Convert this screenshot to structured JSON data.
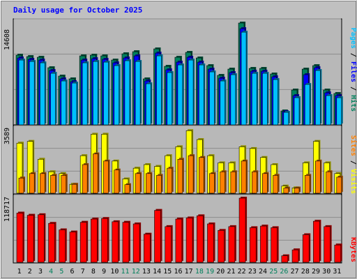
{
  "chart_data": [
    {
      "type": "bar",
      "title": "Daily usage for October 2025",
      "ymax_label": "14608",
      "ylabel_parts": [
        "Pages",
        "Files",
        "Hits"
      ],
      "ylabel_sep": " / ",
      "categories": [
        "1",
        "2",
        "3",
        "4",
        "5",
        "6",
        "7",
        "8",
        "9",
        "10",
        "11",
        "12",
        "13",
        "14",
        "15",
        "16",
        "17",
        "18",
        "19",
        "20",
        "21",
        "22",
        "23",
        "24",
        "25",
        "26",
        "27",
        "28",
        "29",
        "30",
        "31"
      ],
      "weekend_days": [
        "4",
        "5",
        "11",
        "12",
        "18",
        "19",
        "25",
        "26"
      ],
      "ylim": [
        0,
        14608
      ],
      "grid": true,
      "series": [
        {
          "name": "Hits",
          "values": [
            10000,
            9800,
            9700,
            8200,
            7000,
            6600,
            9900,
            10000,
            9900,
            9300,
            10200,
            10500,
            6600,
            10900,
            8400,
            9700,
            10400,
            9600,
            8500,
            7100,
            8000,
            14608,
            8100,
            8100,
            7300,
            2000,
            5000,
            8000,
            8500,
            5000,
            4500
          ]
        },
        {
          "name": "Files",
          "values": [
            9600,
            9400,
            9300,
            7800,
            6600,
            6200,
            9300,
            9500,
            9400,
            8900,
            9600,
            9900,
            6300,
            10300,
            7900,
            9000,
            9700,
            9000,
            8000,
            6700,
            7500,
            13800,
            7700,
            7700,
            6900,
            1900,
            4200,
            7200,
            8200,
            4600,
            4200
          ]
        },
        {
          "name": "Pages",
          "values": [
            9300,
            9100,
            8900,
            7400,
            6300,
            6000,
            8900,
            9100,
            9000,
            8500,
            9200,
            9100,
            5900,
            9900,
            7500,
            8600,
            9300,
            8600,
            7600,
            6300,
            7200,
            13300,
            7400,
            7400,
            6500,
            1800,
            3900,
            5800,
            7800,
            4200,
            3900
          ]
        }
      ]
    },
    {
      "type": "bar",
      "ymax_label": "3589",
      "ylabel_parts": [
        "Sites",
        "Visits"
      ],
      "ylabel_sep": " / ",
      "ylim": [
        0,
        3589
      ],
      "grid": true,
      "series": [
        {
          "name": "Visits",
          "values": [
            2800,
            2900,
            1900,
            1200,
            1100,
            500,
            2100,
            3300,
            3300,
            1800,
            800,
            1400,
            1600,
            1500,
            2100,
            2600,
            3500,
            3000,
            2100,
            1700,
            1700,
            2600,
            2500,
            2000,
            1600,
            400,
            300,
            1700,
            2900,
            1700,
            1100
          ]
        },
        {
          "name": "Sites",
          "values": [
            850,
            1100,
            1100,
            1000,
            1000,
            500,
            1600,
            2200,
            1800,
            1300,
            480,
            1100,
            1100,
            1000,
            1400,
            1900,
            2100,
            2000,
            1100,
            1200,
            1200,
            1800,
            1200,
            1100,
            1000,
            290,
            290,
            1000,
            1800,
            1200,
            900
          ]
        }
      ]
    },
    {
      "type": "bar",
      "ymax_label": "118717",
      "ylabel_parts": [
        "KBytes"
      ],
      "ylabel_sep": "",
      "ylim": [
        0,
        118717
      ],
      "grid": true,
      "series": [
        {
          "name": "KBytes",
          "values": [
            91000,
            87000,
            88000,
            72000,
            60000,
            56000,
            74000,
            80000,
            81000,
            75000,
            74000,
            71000,
            52000,
            96000,
            66000,
            80000,
            82000,
            86000,
            71000,
            59000,
            66000,
            118717,
            64000,
            67000,
            64000,
            12000,
            23000,
            51000,
            76000,
            66000,
            32000
          ]
        }
      ]
    }
  ],
  "colors": {
    "background": "#c0c0c0",
    "plot_bg": "#b8b8b8",
    "title": "#0000ff",
    "hits": "#00805c",
    "files": "#0000ff",
    "pages": "#00c0ff",
    "visits": "#ffff00",
    "sites": "#ff8000",
    "kbytes": "#ff0000",
    "weekday_label": "#000000",
    "weekend_label": "#00805c"
  }
}
